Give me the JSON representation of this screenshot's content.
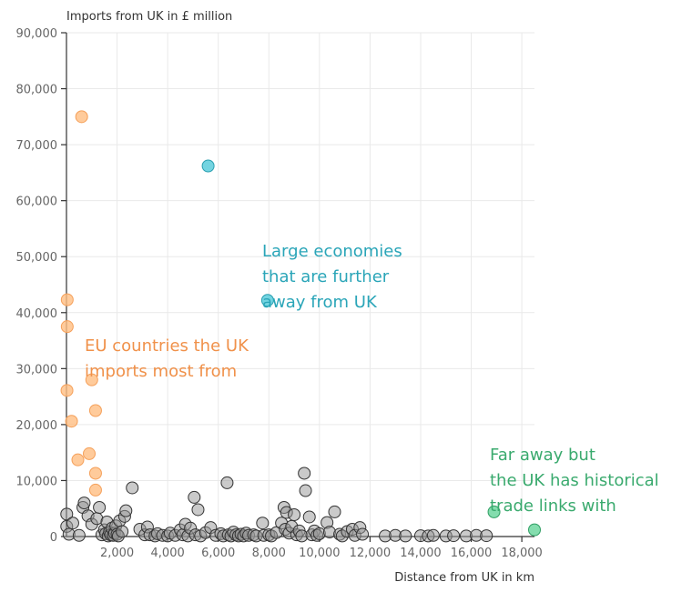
{
  "chart_data": {
    "type": "scatter",
    "xlabel": "Distance from UK in km",
    "ylabel": "Imports from UK in £ million",
    "xlim": [
      0,
      18500
    ],
    "ylim": [
      0,
      90000
    ],
    "x_ticks": [
      2000,
      4000,
      6000,
      8000,
      10000,
      12000,
      14000,
      16000,
      18000
    ],
    "x_tick_labels": [
      "2,000",
      "4,000",
      "6,000",
      "8,000",
      "10,000",
      "12,000",
      "14,000",
      "16,000",
      "18,000"
    ],
    "y_ticks": [
      0,
      10000,
      20000,
      30000,
      40000,
      50000,
      60000,
      70000,
      80000,
      90000
    ],
    "y_tick_labels": [
      "0",
      "10,000",
      "20,000",
      "30,000",
      "40,000",
      "50,000",
      "60,000",
      "70,000",
      "80,000",
      "90,000"
    ],
    "grid": true,
    "colors": {
      "eu": "#f5a05a",
      "large": "#3bb8c9",
      "historical": "#4cc48a",
      "other": "#999999"
    },
    "annotations": [
      {
        "group": "eu",
        "lines": [
          "EU countries the UK",
          "imports most from"
        ],
        "color": "#f0914a"
      },
      {
        "group": "large",
        "lines": [
          "Large economies",
          "that are further",
          "away from UK"
        ],
        "color": "#2aa5b8"
      },
      {
        "group": "historical",
        "lines": [
          "Far away but",
          "the UK has historical",
          "trade links with"
        ],
        "color": "#3aaa6e"
      }
    ],
    "series": [
      {
        "group": "eu",
        "points": [
          [
            600,
            75000
          ],
          [
            30,
            42300
          ],
          [
            30,
            37500
          ],
          [
            20,
            26100
          ],
          [
            200,
            20600
          ],
          [
            450,
            13700
          ],
          [
            900,
            14800
          ],
          [
            1000,
            28000
          ],
          [
            1150,
            22500
          ],
          [
            1150,
            11300
          ],
          [
            1150,
            8300
          ]
        ]
      },
      {
        "group": "large",
        "points": [
          [
            5600,
            66200
          ],
          [
            7950,
            42200
          ]
        ]
      },
      {
        "group": "historical",
        "points": [
          [
            16900,
            4400
          ],
          [
            18500,
            1200
          ]
        ]
      },
      {
        "group": "other",
        "points": [
          [
            10,
            4000
          ],
          [
            10,
            1800
          ],
          [
            250,
            2400
          ],
          [
            100,
            400
          ],
          [
            500,
            200
          ],
          [
            650,
            5200
          ],
          [
            700,
            6000
          ],
          [
            850,
            3700
          ],
          [
            1000,
            2200
          ],
          [
            1200,
            3200
          ],
          [
            1300,
            5200
          ],
          [
            1400,
            300
          ],
          [
            1500,
            1200
          ],
          [
            1550,
            500
          ],
          [
            1600,
            2600
          ],
          [
            1650,
            100
          ],
          [
            1700,
            800
          ],
          [
            1750,
            300
          ],
          [
            1800,
            1500
          ],
          [
            1850,
            200
          ],
          [
            1900,
            600
          ],
          [
            1950,
            1900
          ],
          [
            2000,
            400
          ],
          [
            2050,
            100
          ],
          [
            2100,
            2800
          ],
          [
            2200,
            900
          ],
          [
            2300,
            3600
          ],
          [
            2350,
            4600
          ],
          [
            2600,
            8700
          ],
          [
            2900,
            1300
          ],
          [
            3100,
            300
          ],
          [
            3200,
            1700
          ],
          [
            3300,
            300
          ],
          [
            3500,
            100
          ],
          [
            3600,
            500
          ],
          [
            3800,
            200
          ],
          [
            4000,
            100
          ],
          [
            4100,
            600
          ],
          [
            4300,
            200
          ],
          [
            4500,
            1200
          ],
          [
            4600,
            300
          ],
          [
            4700,
            2200
          ],
          [
            4800,
            100
          ],
          [
            4900,
            1500
          ],
          [
            5050,
            7000
          ],
          [
            5100,
            300
          ],
          [
            5200,
            4800
          ],
          [
            5300,
            100
          ],
          [
            5500,
            700
          ],
          [
            5700,
            1600
          ],
          [
            5900,
            200
          ],
          [
            6100,
            500
          ],
          [
            6200,
            100
          ],
          [
            6350,
            9600
          ],
          [
            6400,
            300
          ],
          [
            6500,
            100
          ],
          [
            6600,
            800
          ],
          [
            6700,
            300
          ],
          [
            6800,
            100
          ],
          [
            6900,
            400
          ],
          [
            7000,
            100
          ],
          [
            7100,
            600
          ],
          [
            7200,
            200
          ],
          [
            7400,
            300
          ],
          [
            7500,
            100
          ],
          [
            7750,
            2400
          ],
          [
            7800,
            200
          ],
          [
            8000,
            300
          ],
          [
            8100,
            100
          ],
          [
            8300,
            700
          ],
          [
            8500,
            2400
          ],
          [
            8600,
            5200
          ],
          [
            8650,
            1300
          ],
          [
            8700,
            4300
          ],
          [
            8800,
            600
          ],
          [
            8900,
            1800
          ],
          [
            9000,
            3900
          ],
          [
            9100,
            300
          ],
          [
            9200,
            1000
          ],
          [
            9300,
            100
          ],
          [
            9400,
            11300
          ],
          [
            9450,
            8200
          ],
          [
            9600,
            3500
          ],
          [
            9700,
            300
          ],
          [
            9800,
            1000
          ],
          [
            9900,
            200
          ],
          [
            10000,
            500
          ],
          [
            10300,
            2500
          ],
          [
            10400,
            800
          ],
          [
            10600,
            4400
          ],
          [
            10800,
            400
          ],
          [
            10900,
            100
          ],
          [
            11100,
            900
          ],
          [
            11300,
            1300
          ],
          [
            11400,
            200
          ],
          [
            11600,
            1600
          ],
          [
            11700,
            400
          ],
          [
            12600,
            100
          ],
          [
            13000,
            200
          ],
          [
            13400,
            100
          ],
          [
            14000,
            150
          ],
          [
            14300,
            100
          ],
          [
            14500,
            200
          ],
          [
            15000,
            100
          ],
          [
            15300,
            150
          ],
          [
            15800,
            100
          ],
          [
            16200,
            200
          ],
          [
            16600,
            150
          ]
        ]
      }
    ]
  }
}
